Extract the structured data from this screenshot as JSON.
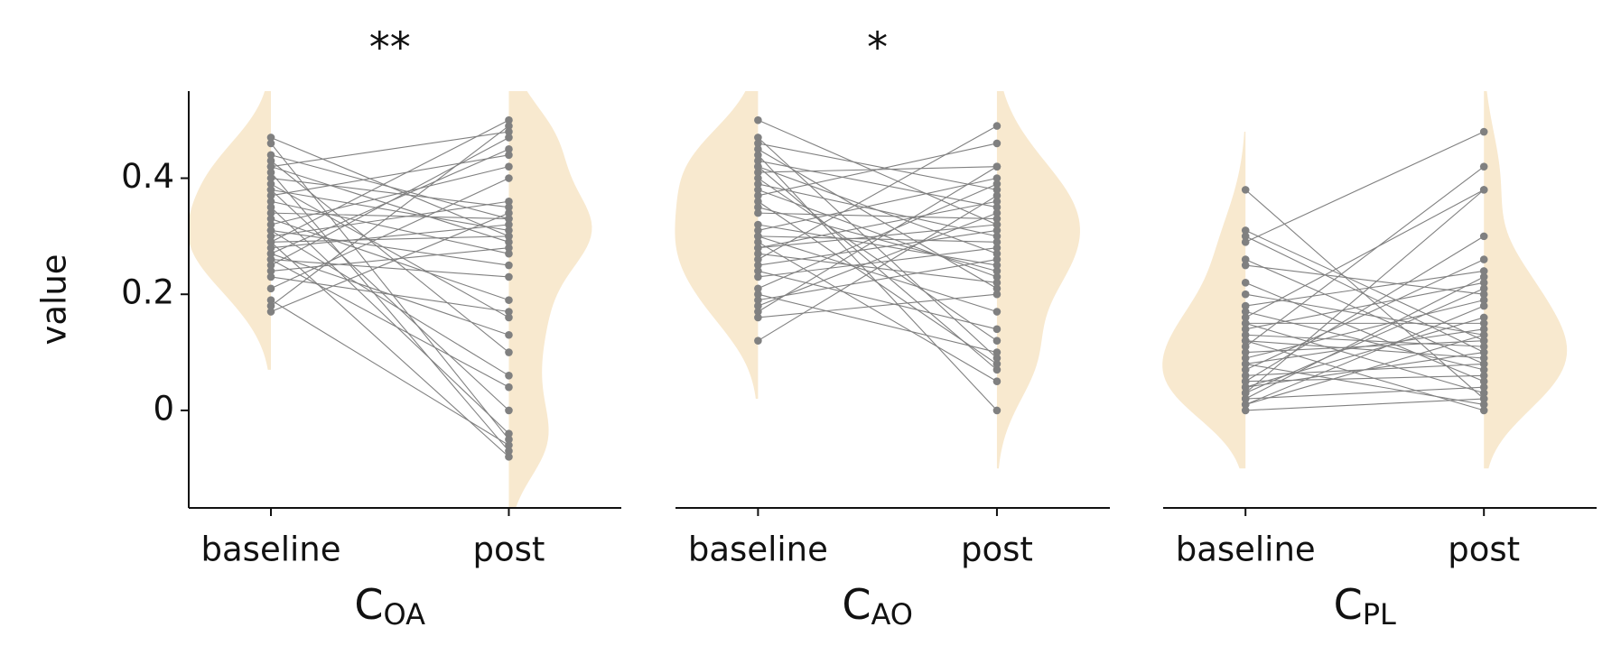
{
  "chart_data": [
    {
      "type": "paired-violin",
      "annotation": "**",
      "ylabel": "value",
      "xlabel": {
        "main": "C",
        "sub": "OA"
      },
      "categories": [
        "baseline",
        "post"
      ],
      "ylim": [
        -0.168,
        0.55
      ],
      "yticks": [
        0.0,
        0.2,
        0.4
      ],
      "violin_color": "#f8e9cf",
      "point_color": "#808080",
      "series": [
        {
          "values": [
            0.47,
            0.46,
            0.44,
            0.43,
            0.42,
            0.42,
            0.41,
            0.4,
            0.39,
            0.38,
            0.38,
            0.37,
            0.36,
            0.35,
            0.34,
            0.33,
            0.32,
            0.31,
            0.31,
            0.3,
            0.29,
            0.29,
            0.28,
            0.27,
            0.27,
            0.26,
            0.26,
            0.25,
            0.24,
            0.23,
            0.21,
            0.19,
            0.18,
            0.17,
            0.29
          ]
        },
        {
          "values": [
            0.3,
            -0.05,
            0.33,
            0.1,
            0.48,
            0.29,
            -0.07,
            0.35,
            0.16,
            0.31,
            0.0,
            0.44,
            0.27,
            -0.04,
            0.33,
            0.19,
            0.42,
            0.06,
            0.25,
            0.36,
            0.5,
            -0.08,
            0.32,
            0.13,
            0.45,
            0.23,
            0.04,
            0.47,
            0.28,
            0.17,
            0.4,
            -0.06,
            0.49,
            0.34,
            0.3
          ]
        }
      ]
    },
    {
      "type": "paired-violin",
      "annotation": "*",
      "xlabel": {
        "main": "C",
        "sub": "AO"
      },
      "categories": [
        "baseline",
        "post"
      ],
      "ylim": [
        -0.168,
        0.55
      ],
      "violin_color": "#f8e9cf",
      "point_color": "#808080",
      "series": [
        {
          "values": [
            0.5,
            0.47,
            0.46,
            0.45,
            0.44,
            0.43,
            0.42,
            0.41,
            0.4,
            0.39,
            0.38,
            0.37,
            0.36,
            0.34,
            0.32,
            0.31,
            0.3,
            0.3,
            0.29,
            0.28,
            0.27,
            0.26,
            0.25,
            0.24,
            0.23,
            0.21,
            0.2,
            0.19,
            0.18,
            0.17,
            0.16,
            0.12,
            0.42,
            0.35,
            0.28
          ]
        },
        {
          "values": [
            0.32,
            0.09,
            0.38,
            0.21,
            0.0,
            0.35,
            0.27,
            0.42,
            0.12,
            0.3,
            0.23,
            0.46,
            0.08,
            0.33,
            0.25,
            0.4,
            0.17,
            0.29,
            0.05,
            0.36,
            0.22,
            0.49,
            0.31,
            0.14,
            0.28,
            0.39,
            0.1,
            0.26,
            0.34,
            0.42,
            0.2,
            0.37,
            0.07,
            0.24,
            0.32
          ]
        }
      ]
    },
    {
      "type": "paired-violin",
      "xlabel": {
        "main": "C",
        "sub": "PL"
      },
      "categories": [
        "baseline",
        "post"
      ],
      "ylim": [
        -0.168,
        0.55
      ],
      "violin_color": "#f8e9cf",
      "point_color": "#808080",
      "series": [
        {
          "values": [
            0.38,
            0.31,
            0.3,
            0.29,
            0.26,
            0.25,
            0.22,
            0.2,
            0.18,
            0.17,
            0.16,
            0.15,
            0.15,
            0.14,
            0.13,
            0.12,
            0.11,
            0.1,
            0.09,
            0.08,
            0.08,
            0.07,
            0.06,
            0.05,
            0.05,
            0.04,
            0.04,
            0.03,
            0.03,
            0.02,
            0.02,
            0.01,
            0.01,
            0.0,
            0.12
          ]
        },
        {
          "values": [
            0.02,
            0.12,
            0.1,
            0.48,
            0.08,
            0.2,
            0.05,
            0.13,
            0.24,
            0.07,
            0.38,
            0.15,
            0.03,
            0.22,
            0.11,
            0.09,
            0.42,
            0.12,
            0.19,
            0.01,
            0.14,
            0.26,
            0.08,
            0.3,
            0.06,
            0.16,
            0.1,
            0.38,
            0.21,
            0.04,
            0.23,
            0.13,
            0.18,
            0.02,
            0.0
          ]
        }
      ]
    }
  ]
}
